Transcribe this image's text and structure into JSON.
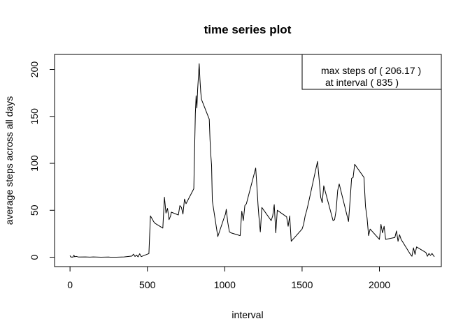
{
  "chart_data": {
    "type": "line",
    "title": "time series plot",
    "xlabel": "interval",
    "ylabel": "average steps across all days",
    "xlim": [
      -100,
      2400
    ],
    "ylim": [
      -10,
      216
    ],
    "xticks": [
      0,
      500,
      1000,
      1500,
      2000
    ],
    "yticks": [
      0,
      50,
      100,
      150,
      200
    ],
    "grid": false,
    "legend": {
      "position": "top-right",
      "line1": "max steps of ( 206.17 )",
      "line2": "at interval ( 835 )"
    },
    "series": [
      {
        "x": [
          0,
          5,
          10,
          15,
          20,
          25,
          30,
          40,
          55,
          100,
          130,
          150,
          200,
          250,
          260,
          300,
          350,
          400,
          410,
          420,
          430,
          440,
          450,
          460,
          500,
          510,
          520,
          530,
          540,
          545,
          550,
          600,
          610,
          620,
          630,
          640,
          650,
          655,
          700,
          710,
          720,
          730,
          740,
          750,
          800,
          810,
          815,
          820,
          825,
          830,
          835,
          840,
          845,
          850,
          855,
          900,
          905,
          910,
          915,
          920,
          955,
          1000,
          1005,
          1010,
          1020,
          1030,
          1040,
          1100,
          1110,
          1120,
          1130,
          1140,
          1200,
          1210,
          1215,
          1220,
          1230,
          1240,
          1300,
          1310,
          1320,
          1330,
          1340,
          1400,
          1410,
          1420,
          1430,
          1500,
          1510,
          1520,
          1530,
          1540,
          1600,
          1610,
          1620,
          1630,
          1640,
          1700,
          1710,
          1720,
          1730,
          1740,
          1800,
          1810,
          1820,
          1830,
          1840,
          1900,
          1910,
          1920,
          1930,
          1940,
          2000,
          2010,
          2020,
          2030,
          2040,
          2100,
          2110,
          2120,
          2130,
          2140,
          2200,
          2210,
          2220,
          2230,
          2240,
          2300,
          2310,
          2320,
          2330,
          2340,
          2355
        ],
        "y": [
          1.7,
          0.3,
          0.1,
          0.2,
          0.1,
          2.1,
          0.5,
          0.9,
          0.2,
          0.3,
          0.1,
          0.3,
          0,
          0.2,
          0,
          0,
          0.3,
          1.2,
          3.2,
          0.8,
          2.3,
          0.4,
          3.7,
          0.6,
          3.2,
          3.8,
          44,
          41,
          38,
          37,
          36,
          31,
          64,
          47,
          52,
          40,
          44,
          48,
          45,
          55,
          53,
          46,
          62,
          57,
          73,
          153,
          172,
          159,
          179,
          192,
          206.17,
          189,
          176,
          168,
          166,
          147,
          125,
          109,
          98,
          60,
          22,
          44,
          46,
          51,
          37,
          27,
          26,
          23,
          49,
          39,
          55,
          57,
          95,
          70,
          56,
          45,
          27,
          53,
          39,
          44,
          56,
          26,
          50,
          43,
          33,
          44,
          17,
          30,
          35,
          44,
          50,
          57,
          102,
          83,
          64,
          58,
          76,
          39,
          40,
          50,
          71,
          78,
          38,
          60,
          84,
          85,
          99,
          85,
          54,
          42,
          23,
          30,
          19,
          35,
          26,
          33,
          19,
          21,
          28,
          17,
          24,
          19,
          3,
          1,
          10,
          3,
          11,
          5,
          1,
          4,
          2,
          4,
          0.5
        ]
      }
    ]
  }
}
